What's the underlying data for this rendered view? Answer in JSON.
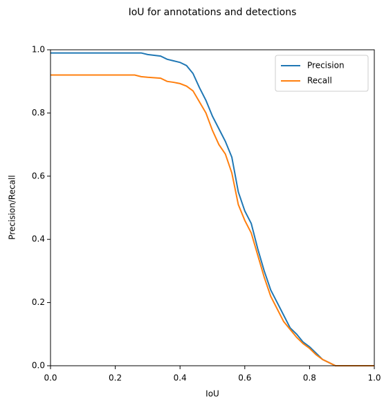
{
  "chart_data": {
    "type": "line",
    "title": "IoU for annotations and detections",
    "x_label": "IoU",
    "y_label": "Precision/Recall",
    "x": [
      0,
      0.26,
      0.28,
      0.3,
      0.34,
      0.36,
      0.38,
      0.4,
      0.42,
      0.44,
      0.46,
      0.48,
      0.5,
      0.52,
      0.54,
      0.56,
      0.58,
      0.6,
      0.62,
      0.64,
      0.66,
      0.68,
      0.7,
      0.72,
      0.74,
      0.76,
      0.78,
      0.8,
      0.82,
      0.84,
      0.86,
      0.88,
      1.0
    ],
    "series": [
      {
        "name": "Precision",
        "color": "#1f77b4",
        "values": [
          0.99,
          0.99,
          0.99,
          0.985,
          0.98,
          0.97,
          0.965,
          0.96,
          0.95,
          0.925,
          0.88,
          0.84,
          0.79,
          0.75,
          0.71,
          0.66,
          0.55,
          0.49,
          0.45,
          0.37,
          0.3,
          0.24,
          0.2,
          0.16,
          0.12,
          0.1,
          0.075,
          0.06,
          0.04,
          0.02,
          0.01,
          0.0,
          0.0
        ]
      },
      {
        "name": "Recall",
        "color": "#ff7f0e",
        "values": [
          0.92,
          0.92,
          0.915,
          0.913,
          0.91,
          0.9,
          0.897,
          0.893,
          0.885,
          0.87,
          0.835,
          0.8,
          0.745,
          0.7,
          0.67,
          0.61,
          0.51,
          0.46,
          0.42,
          0.35,
          0.28,
          0.22,
          0.18,
          0.14,
          0.115,
          0.09,
          0.07,
          0.055,
          0.035,
          0.02,
          0.01,
          0.0,
          0.0
        ]
      }
    ],
    "xlim": [
      0,
      1.0
    ],
    "ylim": [
      0,
      1.0
    ],
    "xticks": [
      {
        "value": 0,
        "label": "0.0"
      },
      0.2,
      0.4,
      0.6,
      0.8,
      {
        "value": 1.0,
        "label": "1.0"
      }
    ],
    "yticks": [
      {
        "value": 0,
        "label": "0.0"
      },
      0.2,
      0.4,
      0.6,
      0.8,
      {
        "value": 1.0,
        "label": "1.0"
      }
    ],
    "legend": "upper right",
    "grid": false
  }
}
